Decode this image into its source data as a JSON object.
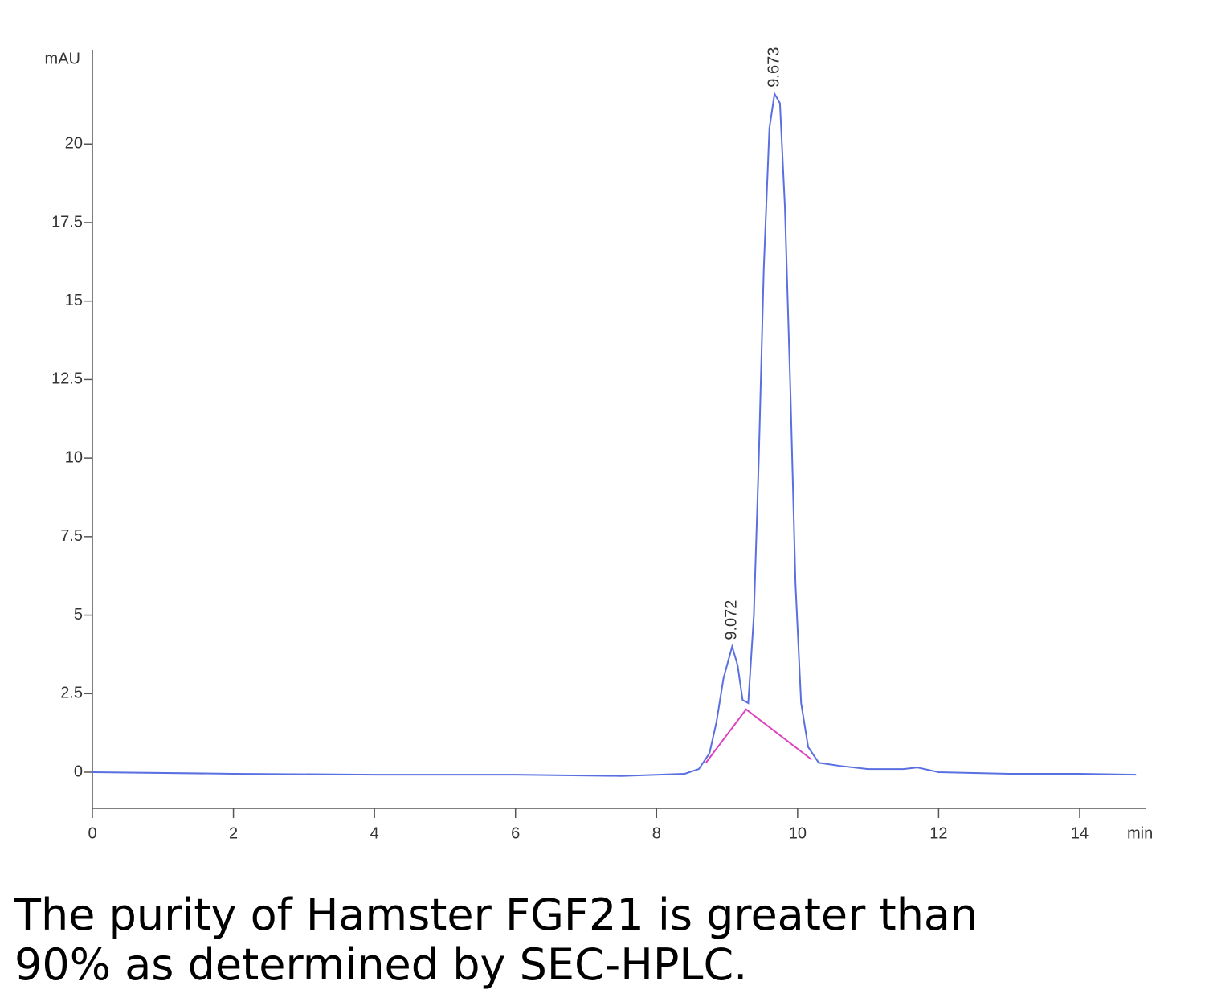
{
  "chart_data": {
    "type": "line",
    "ylabel": "mAU",
    "xlabel": "min",
    "xlim": [
      0,
      14.9
    ],
    "ylim": [
      -1.1,
      23
    ],
    "xticks": [
      0,
      2,
      4,
      6,
      8,
      10,
      12,
      14
    ],
    "yticks": [
      0,
      2.5,
      5,
      7.5,
      10,
      12.5,
      15,
      17.5,
      20
    ],
    "series": [
      {
        "color": "#5a6fe0",
        "x": [
          0,
          2,
          4,
          6,
          7.5,
          8.4,
          8.6,
          8.75,
          8.85,
          8.95,
          9.072,
          9.15,
          9.22,
          9.3,
          9.38,
          9.45,
          9.52,
          9.6,
          9.673,
          9.75,
          9.82,
          9.9,
          9.97,
          10.05,
          10.15,
          10.3,
          10.6,
          11,
          11.5,
          11.7,
          12,
          13,
          14,
          14.8
        ],
        "values": [
          0,
          -0.05,
          -0.08,
          -0.08,
          -0.12,
          -0.05,
          0.1,
          0.6,
          1.6,
          3.0,
          4.0,
          3.4,
          2.3,
          2.2,
          5,
          10,
          16,
          20.5,
          21.6,
          21.3,
          18,
          12,
          6,
          2.2,
          0.8,
          0.3,
          0.2,
          0.1,
          0.1,
          0.15,
          0,
          -0.05,
          -0.05,
          -0.08
        ]
      },
      {
        "color": "#e040c0",
        "x": [
          8.7,
          9.27,
          10.2
        ],
        "values": [
          0.3,
          2.0,
          0.4
        ]
      }
    ],
    "peaks": {
      "x": [
        9.072,
        9.673
      ],
      "values": [
        4.0,
        21.6
      ]
    }
  },
  "caption": "The purity of Hamster FGF21 is greater than 90% as determined by SEC-HPLC."
}
